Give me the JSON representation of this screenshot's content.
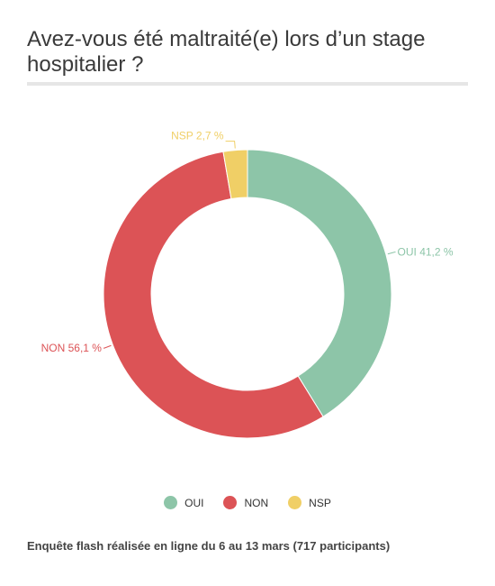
{
  "page": {
    "title": "Avez-vous été maltraité(e) lors d’un stage hospitalier ?",
    "footnote": "Enquête flash réalisée en ligne du 6 au 13 mars (717 participants)"
  },
  "chart_data": {
    "type": "pie",
    "variant": "donut",
    "title": "Avez-vous été maltraité(e) lors d’un stage hospitalier ?",
    "unit": "%",
    "categories": [
      "OUI",
      "NON",
      "NSP"
    ],
    "values": [
      41.2,
      56.1,
      2.7
    ],
    "data_labels": [
      "OUI 41,2 %",
      "NON 56,1 %",
      "NSP 2,7 %"
    ],
    "colors": [
      "#8dc5a8",
      "#dc5356",
      "#f0cf66"
    ],
    "legend_position": "bottom",
    "grid": false
  }
}
